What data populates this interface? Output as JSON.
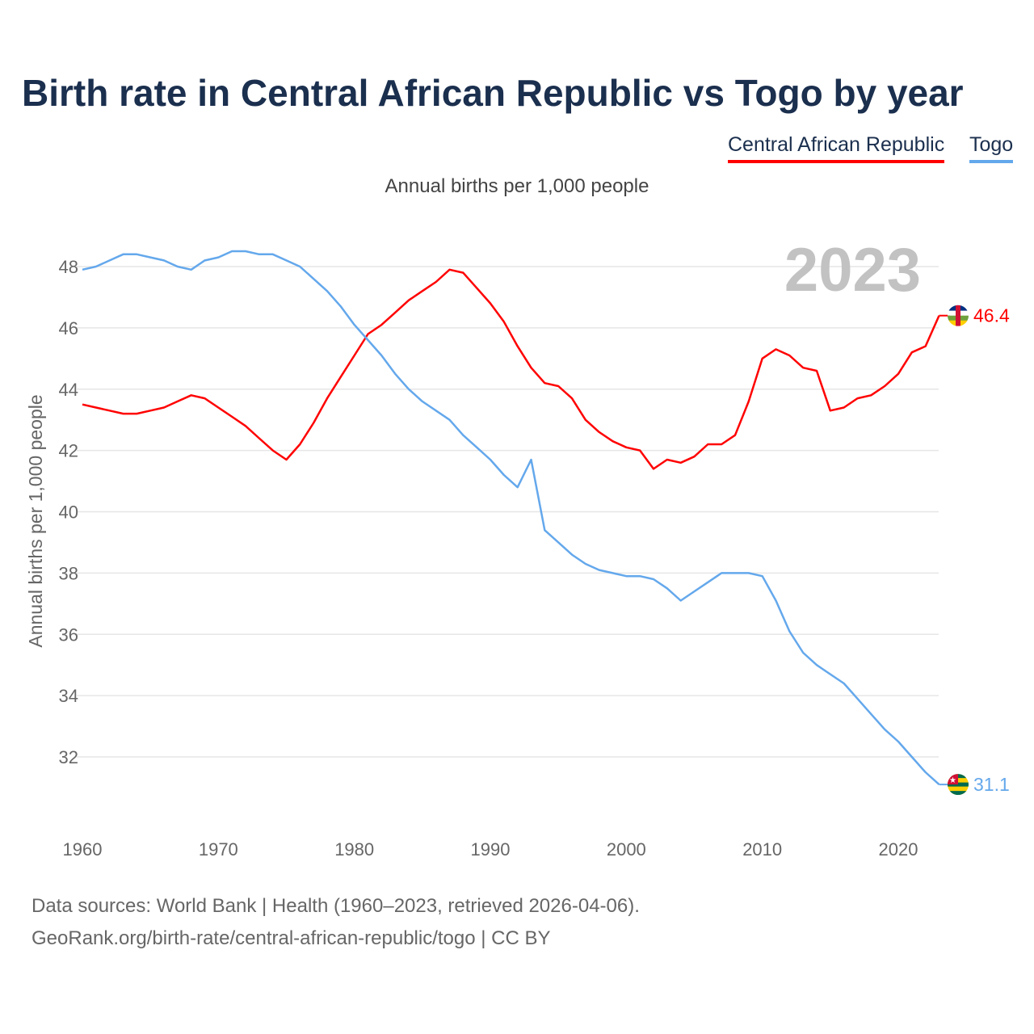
{
  "title": "Birth rate in Central African Republic vs Togo by year",
  "legend": [
    "Central African Republic",
    "Togo"
  ],
  "subtitle": "Annual births per 1,000 people",
  "footer": {
    "line1": "Data sources: World Bank | Health (1960–2023, retrieved 2026-04-06).",
    "line2": "GeoRank.org/birth-rate/central-african-republic/togo | CC BY"
  },
  "chart_data": {
    "type": "line",
    "title": "Birth rate in Central African Republic vs Togo by year",
    "xlabel": "",
    "ylabel": "Annual births per 1,000 people",
    "year_label": "2023",
    "xlim": [
      1960,
      2023
    ],
    "ylim": [
      30.7,
      49.2
    ],
    "xticks": [
      1960,
      1970,
      1980,
      1990,
      2000,
      2010,
      2020
    ],
    "yticks": [
      32,
      34,
      36,
      38,
      40,
      42,
      44,
      46,
      48
    ],
    "grid": true,
    "legend_position": "top-right",
    "x_start": 1960,
    "series": [
      {
        "name": "Central African Republic",
        "color": "#ff0000",
        "end_label": "46.4",
        "values": [
          43.5,
          43.4,
          43.3,
          43.2,
          43.2,
          43.3,
          43.4,
          43.6,
          43.8,
          43.7,
          43.4,
          43.1,
          42.8,
          42.4,
          42.0,
          41.7,
          42.2,
          42.9,
          43.7,
          44.4,
          45.1,
          45.8,
          46.1,
          46.5,
          46.9,
          47.2,
          47.5,
          47.9,
          47.8,
          47.3,
          46.8,
          46.2,
          45.4,
          44.7,
          44.2,
          44.1,
          43.7,
          43.0,
          42.6,
          42.3,
          42.1,
          42.0,
          41.4,
          41.7,
          41.6,
          41.8,
          42.2,
          42.2,
          42.5,
          43.6,
          45.0,
          45.3,
          45.1,
          44.7,
          44.6,
          43.3,
          43.4,
          43.7,
          43.8,
          44.1,
          44.5,
          45.2,
          45.4,
          46.4
        ]
      },
      {
        "name": "Togo",
        "color": "#64a8ec",
        "end_label": "31.1",
        "values": [
          47.9,
          48.0,
          48.2,
          48.4,
          48.4,
          48.3,
          48.2,
          48.0,
          47.9,
          48.2,
          48.3,
          48.5,
          48.5,
          48.4,
          48.4,
          48.2,
          48.0,
          47.6,
          47.2,
          46.7,
          46.1,
          45.6,
          45.1,
          44.5,
          44.0,
          43.6,
          43.3,
          43.0,
          42.5,
          42.1,
          41.7,
          41.2,
          40.8,
          41.7,
          39.4,
          39.0,
          38.6,
          38.3,
          38.1,
          38.0,
          37.9,
          37.9,
          37.8,
          37.5,
          37.1,
          37.4,
          37.7,
          38.0,
          38.0,
          38.0,
          37.9,
          37.1,
          36.1,
          35.4,
          35.0,
          34.7,
          34.4,
          33.9,
          33.4,
          32.9,
          32.5,
          32.0,
          31.5,
          31.1
        ]
      }
    ]
  }
}
